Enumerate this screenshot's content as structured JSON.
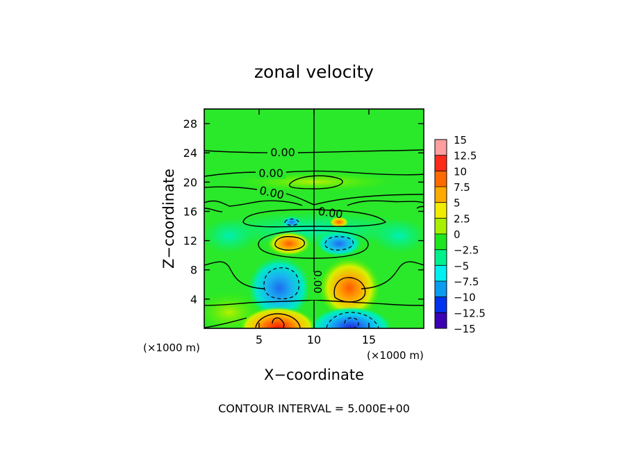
{
  "chart_data": {
    "type": "heatmap",
    "title": "zonal velocity",
    "xlabel": "X−coordinate",
    "ylabel": "Z−coordinate",
    "xlim": [
      0,
      20
    ],
    "ylim": [
      0,
      30
    ],
    "x_ticks": [
      5,
      10,
      15
    ],
    "y_ticks": [
      4,
      8,
      12,
      16,
      20,
      24,
      28
    ],
    "x_unit_left": "(×1000 m)",
    "x_unit_right": "(×1000 m)",
    "footer": "CONTOUR INTERVAL = 5.000E+00",
    "contour_labels": [
      {
        "text": "0.00",
        "x": 7.3,
        "z": 24.1
      },
      {
        "text": "0.00",
        "x": 6.2,
        "z": 21.8
      },
      {
        "text": "0.00",
        "x": 5.5,
        "z": 18.7
      },
      {
        "text": "0.00",
        "x": 11.3,
        "z": 15.8
      },
      {
        "text": "0.00",
        "x": 10.0,
        "z": 5.8,
        "rotate": 90
      }
    ],
    "features": [
      {
        "name": "cell-upper-left-positive",
        "x": 7.5,
        "z": 11.8,
        "value": 10
      },
      {
        "name": "cell-upper-right-negative",
        "x": 12.5,
        "z": 11.8,
        "value": -7.5
      },
      {
        "name": "cell-mid-left-negative",
        "x": 6.8,
        "z": 5.0,
        "value": -7.5
      },
      {
        "name": "cell-mid-right-positive",
        "x": 13.2,
        "z": 5.0,
        "value": 7.5
      },
      {
        "name": "cell-bottom-left-positive",
        "x": 6.8,
        "z": 0.8,
        "value": 12.5
      },
      {
        "name": "cell-bottom-right-negative",
        "x": 13.3,
        "z": 0.8,
        "value": -12.5
      }
    ],
    "colorbar": {
      "range": [
        -15,
        15
      ],
      "ticks": [
        "15",
        "12.5",
        "10",
        "7.5",
        "5",
        "2.5",
        "0",
        "−2.5",
        "−5",
        "−7.5",
        "−10",
        "−12.5",
        "−15"
      ],
      "colors": [
        "#ff9f9f",
        "#ff2a1a",
        "#ff6a00",
        "#ffaa00",
        "#f2ec00",
        "#a8f000",
        "#1ee61e",
        "#00f08c",
        "#00f0f0",
        "#0a9cf0",
        "#0032f0",
        "#3c00b4",
        "#64008c"
      ]
    }
  }
}
